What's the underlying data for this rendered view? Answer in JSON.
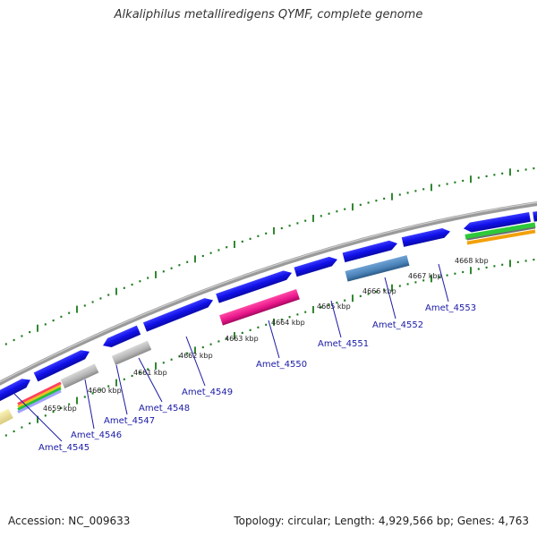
{
  "title": "Alkaliphilus metalliredigens QYMF, complete genome",
  "footer": {
    "accession": "Accession: NC_009633",
    "summary": "Topology: circular; Length: 4,929,566 bp; Genes: 4,763"
  },
  "colors": {
    "cds": "#1010e8",
    "backbone": "#888888",
    "tick": "#1a7a1a",
    "label": "#1a1aa6"
  },
  "kbp_ticks": [
    "4659 kbp",
    "4660 kbp",
    "4661 kbp",
    "4662 kbp",
    "4663 kbp",
    "4664 kbp",
    "4665 kbp",
    "4666 kbp",
    "4667 kbp",
    "4668 kbp"
  ],
  "gene_labels": [
    "Amet_4545",
    "Amet_4546",
    "Amet_4547",
    "Amet_4548",
    "Amet_4549",
    "Amet_4550",
    "Amet_4551",
    "Amet_4552",
    "Amet_4553"
  ]
}
